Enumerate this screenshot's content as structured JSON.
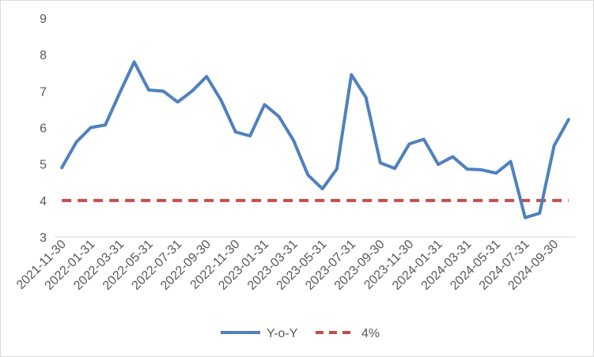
{
  "chart_data": {
    "type": "line",
    "title": "",
    "xlabel": "",
    "ylabel": "",
    "ylim": [
      3,
      9
    ],
    "yticks": [
      3,
      4,
      5,
      6,
      7,
      8,
      9
    ],
    "grid": false,
    "legend_position": "bottom",
    "x": [
      "2021-11-30",
      "2021-12-31",
      "2022-01-31",
      "2022-02-28",
      "2022-03-31",
      "2022-04-30",
      "2022-05-31",
      "2022-06-30",
      "2022-07-31",
      "2022-08-31",
      "2022-09-30",
      "2022-10-31",
      "2022-11-30",
      "2022-12-31",
      "2023-01-31",
      "2023-02-28",
      "2023-03-31",
      "2023-04-30",
      "2023-05-31",
      "2023-06-30",
      "2023-07-31",
      "2023-08-31",
      "2023-09-30",
      "2023-10-31",
      "2023-11-30",
      "2023-12-31",
      "2024-01-31",
      "2024-02-29",
      "2024-03-31",
      "2024-04-30",
      "2024-05-31",
      "2024-06-30",
      "2024-07-31",
      "2024-08-31",
      "2024-09-30",
      "2024-10-31"
    ],
    "x_tick_labels": [
      "2021-11-30",
      "2022-01-31",
      "2022-03-31",
      "2022-05-31",
      "2022-07-31",
      "2022-09-30",
      "2022-11-30",
      "2023-01-31",
      "2023-03-31",
      "2023-05-31",
      "2023-07-31",
      "2023-09-30",
      "2023-11-30",
      "2024-01-31",
      "2024-03-31",
      "2024-05-31",
      "2024-07-31",
      "2024-09-30"
    ],
    "series": [
      {
        "name": "Y-o-Y",
        "color": "#4f81bd",
        "style": "solid",
        "values": [
          4.9,
          5.6,
          6.0,
          6.07,
          6.95,
          7.8,
          7.03,
          7.0,
          6.7,
          7.0,
          7.4,
          6.75,
          5.88,
          5.77,
          6.63,
          6.3,
          5.65,
          4.7,
          4.32,
          4.87,
          7.45,
          6.83,
          5.03,
          4.88,
          5.55,
          5.68,
          4.99,
          5.2,
          4.86,
          4.84,
          4.75,
          5.07,
          3.53,
          3.65,
          5.5,
          6.22
        ]
      },
      {
        "name": "4%",
        "color": "#c0504d",
        "style": "dashed",
        "values": [
          4,
          4,
          4,
          4,
          4,
          4,
          4,
          4,
          4,
          4,
          4,
          4,
          4,
          4,
          4,
          4,
          4,
          4,
          4,
          4,
          4,
          4,
          4,
          4,
          4,
          4,
          4,
          4,
          4,
          4,
          4,
          4,
          4,
          4,
          4,
          4
        ]
      }
    ]
  }
}
